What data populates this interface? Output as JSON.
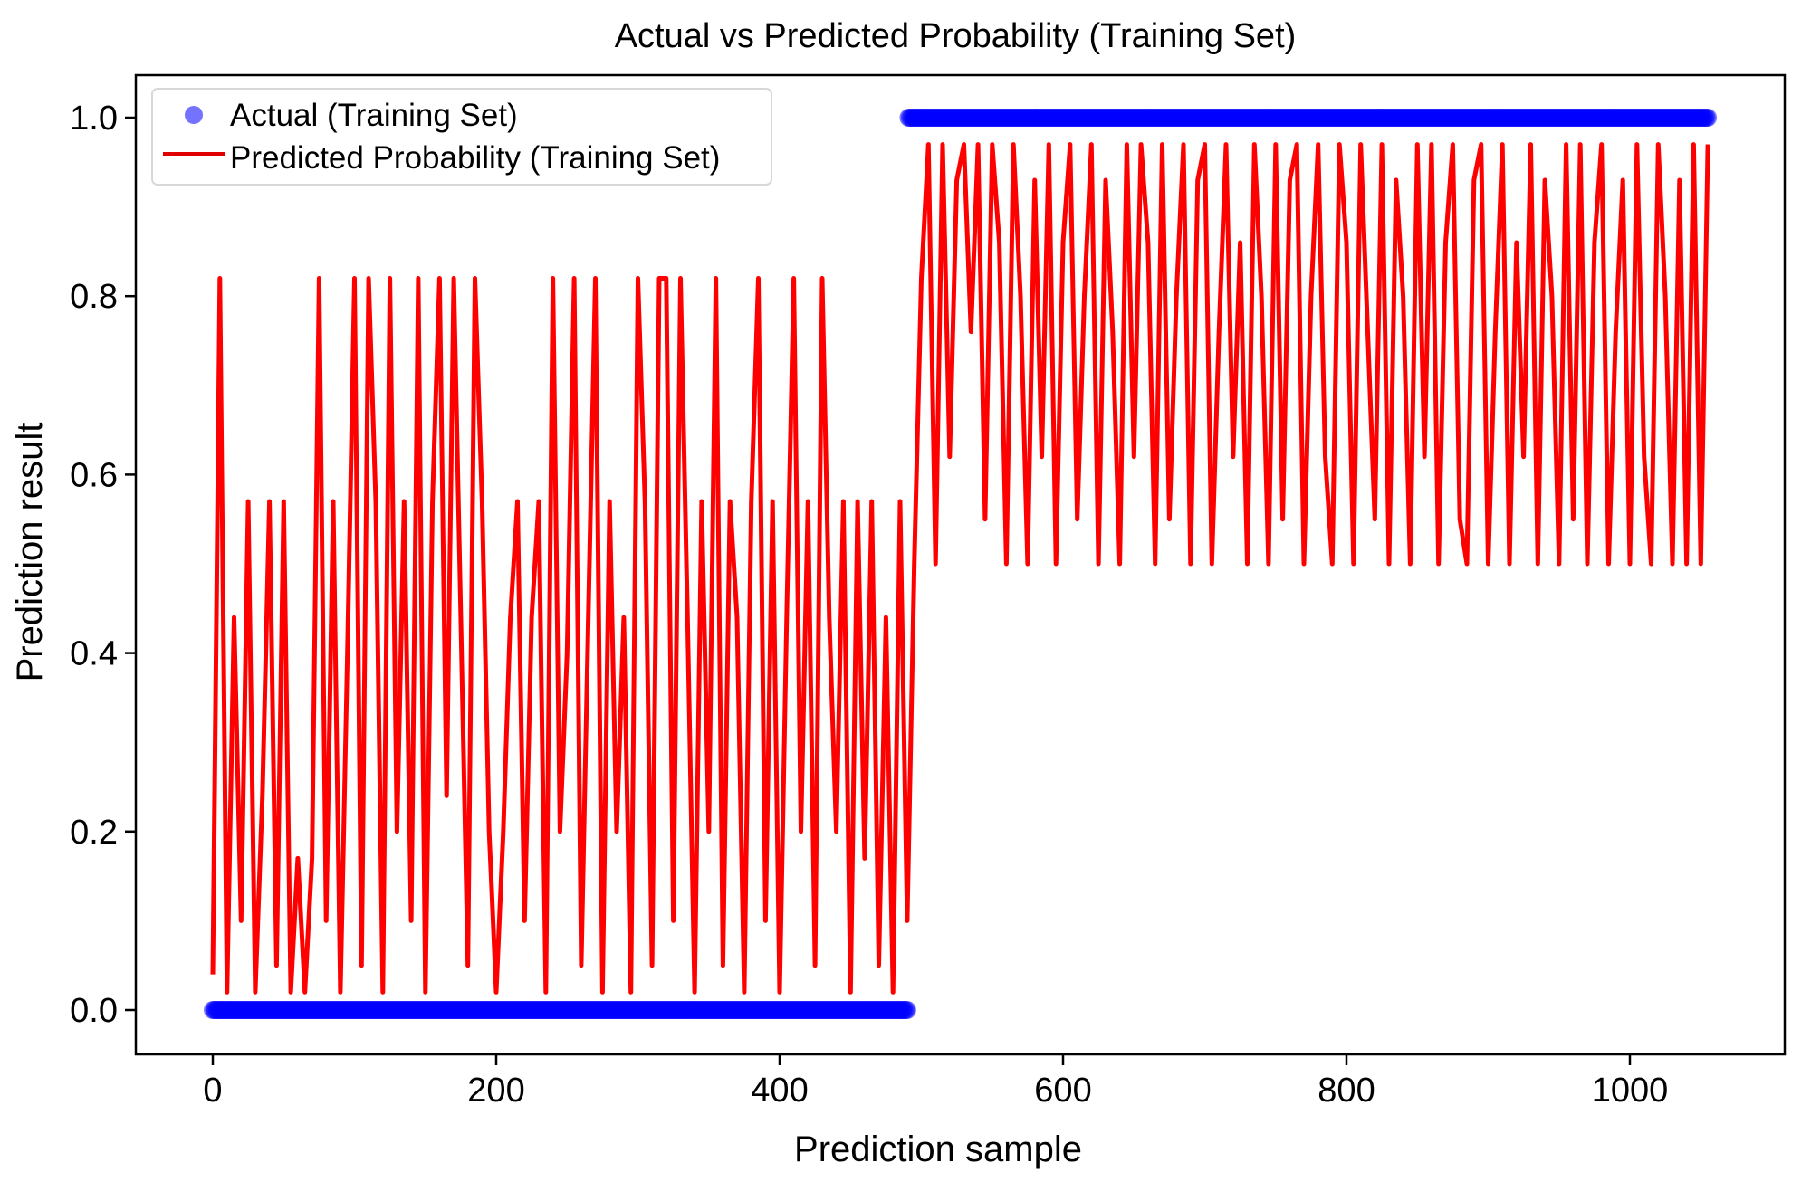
{
  "chart_data": {
    "type": "line",
    "title": "Actual vs Predicted Probability (Training Set)",
    "xlabel": "Prediction sample",
    "ylabel": "Prediction result",
    "xlim": [
      -50,
      1090
    ],
    "ylim": [
      -0.05,
      1.05
    ],
    "xticks": [
      0,
      200,
      400,
      600,
      800,
      1000
    ],
    "xtick_labels": [
      "0",
      "200",
      "400",
      "600",
      "800",
      "1000"
    ],
    "yticks": [
      0.0,
      0.2,
      0.4,
      0.6,
      0.8,
      1.0
    ],
    "ytick_labels": [
      "0.0",
      "0.2",
      "0.4",
      "0.6",
      "0.8",
      "1.0"
    ],
    "grid": false,
    "legend_placement": "upper-left",
    "series": [
      {
        "name": "Actual (Training Set)",
        "kind": "scatter",
        "color": "#0000ff",
        "segments": [
          {
            "x_start": 0,
            "x_end": 490,
            "value": 0
          },
          {
            "x_start": 491,
            "x_end": 1055,
            "value": 1
          }
        ]
      },
      {
        "name": "Predicted Probability (Training Set)",
        "kind": "line",
        "color": "#ff0000",
        "x_start": 0,
        "x_step": 5,
        "values": [
          0.04,
          0.82,
          0.02,
          0.44,
          0.1,
          0.57,
          0.02,
          0.24,
          0.57,
          0.05,
          0.57,
          0.02,
          0.17,
          0.02,
          0.17,
          0.82,
          0.1,
          0.57,
          0.02,
          0.4,
          0.82,
          0.05,
          0.82,
          0.57,
          0.02,
          0.82,
          0.2,
          0.57,
          0.1,
          0.82,
          0.02,
          0.57,
          0.82,
          0.24,
          0.82,
          0.44,
          0.05,
          0.82,
          0.57,
          0.2,
          0.02,
          0.2,
          0.44,
          0.57,
          0.1,
          0.44,
          0.57,
          0.02,
          0.82,
          0.2,
          0.4,
          0.82,
          0.05,
          0.44,
          0.82,
          0.02,
          0.57,
          0.2,
          0.44,
          0.02,
          0.82,
          0.57,
          0.05,
          0.82,
          0.82,
          0.1,
          0.82,
          0.44,
          0.02,
          0.57,
          0.2,
          0.82,
          0.05,
          0.57,
          0.44,
          0.02,
          0.57,
          0.82,
          0.1,
          0.57,
          0.02,
          0.44,
          0.82,
          0.2,
          0.57,
          0.05,
          0.82,
          0.44,
          0.2,
          0.57,
          0.02,
          0.57,
          0.17,
          0.57,
          0.05,
          0.44,
          0.02,
          0.57,
          0.1,
          0.5,
          0.82,
          0.97,
          0.5,
          0.97,
          0.62,
          0.93,
          0.97,
          0.76,
          0.97,
          0.55,
          0.97,
          0.86,
          0.5,
          0.97,
          0.8,
          0.5,
          0.93,
          0.62,
          0.97,
          0.5,
          0.86,
          0.97,
          0.55,
          0.8,
          0.97,
          0.5,
          0.93,
          0.76,
          0.5,
          0.97,
          0.62,
          0.97,
          0.86,
          0.5,
          0.97,
          0.55,
          0.8,
          0.97,
          0.5,
          0.93,
          0.97,
          0.5,
          0.76,
          0.97,
          0.62,
          0.86,
          0.5,
          0.97,
          0.8,
          0.5,
          0.97,
          0.55,
          0.93,
          0.97,
          0.5,
          0.8,
          0.97,
          0.62,
          0.5,
          0.97,
          0.86,
          0.5,
          0.97,
          0.76,
          0.55,
          0.97,
          0.5,
          0.93,
          0.8,
          0.5,
          0.97,
          0.62,
          0.97,
          0.5,
          0.86,
          0.97,
          0.55,
          0.5,
          0.93,
          0.97,
          0.5,
          0.76,
          0.97,
          0.5,
          0.86,
          0.62,
          0.97,
          0.5,
          0.93,
          0.8,
          0.5,
          0.97,
          0.55,
          0.97,
          0.5,
          0.86,
          0.97,
          0.5,
          0.76,
          0.93,
          0.5,
          0.97,
          0.62,
          0.5,
          0.97,
          0.8,
          0.5,
          0.93,
          0.5,
          0.97,
          0.5,
          0.97
        ]
      }
    ]
  }
}
